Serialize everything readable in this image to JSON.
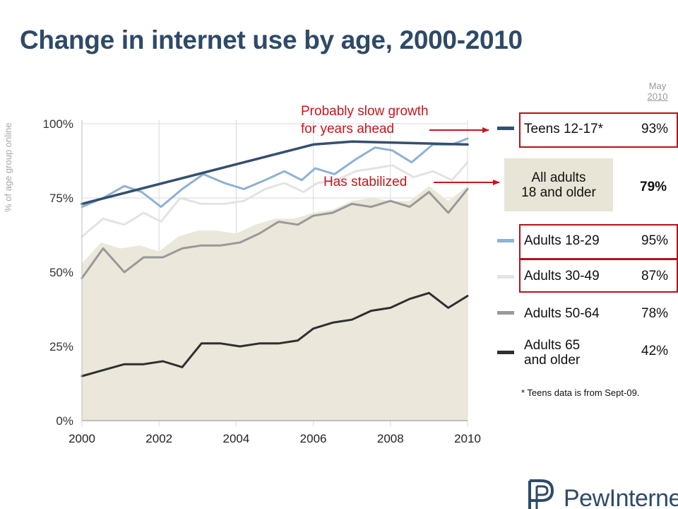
{
  "header": {
    "title": "Change in internet use by age, 2000-2010"
  },
  "chart_data": {
    "type": "line",
    "title": "Change in internet use by age, 2000-2010",
    "ylabel": "% of age group online",
    "xlim": [
      2000,
      2010
    ],
    "ylim": [
      0,
      100
    ],
    "x_ticks": [
      "2000",
      "2002",
      "2004",
      "2006",
      "2008",
      "2010"
    ],
    "y_ticks": [
      "0%",
      "25%",
      "50%",
      "75%",
      "100%"
    ],
    "grid": true,
    "area": {
      "name": "All adults 18 and older",
      "x": [
        2000,
        2000.5,
        2001,
        2001.5,
        2002,
        2002.5,
        2003,
        2003.5,
        2004,
        2004.5,
        2005,
        2005.5,
        2006,
        2006.5,
        2007,
        2007.5,
        2008,
        2008.5,
        2009,
        2009.5,
        2010
      ],
      "y": [
        53,
        60,
        58,
        59,
        57,
        62,
        64,
        64,
        63,
        66,
        68,
        68,
        70,
        71,
        74,
        75,
        74,
        74,
        79,
        74,
        79
      ]
    },
    "series": [
      {
        "name": "Teens 12-17*",
        "color": "#34506e",
        "x": [
          2000,
          2006,
          2007,
          2010
        ],
        "y": [
          73,
          93,
          94,
          93
        ]
      },
      {
        "name": "Adults 18-29",
        "color": "#8fb1d3",
        "x": [
          2000,
          2000.55,
          2001.1,
          2001.55,
          2002.05,
          2002.6,
          2003.15,
          2003.7,
          2004.2,
          2004.75,
          2005.25,
          2005.7,
          2006.05,
          2006.55,
          2007.1,
          2007.6,
          2008.05,
          2008.55,
          2009.1,
          2009.6,
          2010
        ],
        "y": [
          72,
          75,
          79,
          77,
          72,
          78,
          83,
          80,
          78,
          81,
          84,
          81,
          85,
          83,
          88,
          92,
          91,
          87,
          93,
          93,
          95
        ]
      },
      {
        "name": "Adults 30-49",
        "color": "#e3e3e3",
        "x": [
          2000,
          2000.55,
          2001.1,
          2001.6,
          2002.05,
          2002.55,
          2003.1,
          2003.7,
          2004.2,
          2004.75,
          2005.25,
          2005.75,
          2006.1,
          2006.6,
          2007.1,
          2007.6,
          2008.05,
          2008.6,
          2009.1,
          2009.6,
          2010
        ],
        "y": [
          62,
          68,
          66,
          70,
          67,
          75,
          73,
          73,
          74,
          78,
          80,
          77,
          80,
          81,
          84,
          85,
          86,
          82,
          84,
          81,
          87
        ]
      },
      {
        "name": "Adults 50-64",
        "color": "#999999",
        "x": [
          2000,
          2000.55,
          2001.1,
          2001.6,
          2002.1,
          2002.6,
          2003.1,
          2003.6,
          2004.1,
          2004.6,
          2005.1,
          2005.6,
          2006,
          2006.5,
          2007,
          2007.5,
          2008,
          2008.5,
          2009,
          2009.5,
          2010
        ],
        "y": [
          48,
          58,
          50,
          55,
          55,
          58,
          59,
          59,
          60,
          63,
          67,
          66,
          69,
          70,
          73,
          72,
          74,
          72,
          77,
          70,
          78
        ]
      },
      {
        "name": "Adults 65 and older",
        "color": "#2f2f2f",
        "x": [
          2000,
          2000.55,
          2001.1,
          2001.6,
          2002.1,
          2002.6,
          2003.1,
          2003.6,
          2004.1,
          2004.6,
          2005.1,
          2005.6,
          2006,
          2006.5,
          2007,
          2007.5,
          2008,
          2008.5,
          2009,
          2009.5,
          2010
        ],
        "y": [
          15,
          17,
          19,
          19,
          20,
          18,
          26,
          26,
          25,
          26,
          26,
          27,
          31,
          33,
          34,
          37,
          38,
          41,
          43,
          38,
          42
        ]
      }
    ]
  },
  "legend": {
    "header_month": "May",
    "header_year": "2010",
    "items": [
      {
        "label": "Teens 12-17*",
        "value": "93%",
        "color": "#34506e"
      },
      {
        "label": "Adults 18-29",
        "value": "95%",
        "color": "#8fb1d3"
      },
      {
        "label": "Adults 30-49",
        "value": "87%",
        "color": "#e3e3e3"
      },
      {
        "label": "Adults 50-64",
        "value": "78%",
        "color": "#999999"
      },
      {
        "label_line1": "Adults 65",
        "label_line2": "and older",
        "value": "42%",
        "color": "#2f2f2f"
      }
    ],
    "all_adults": {
      "line1": "All adults",
      "line2": "18 and older",
      "value": "79%",
      "color": "#e8e4d6"
    }
  },
  "annotations": {
    "slow_growth_line1": "Probably slow growth",
    "slow_growth_line2": "for years ahead",
    "stabilized": "Has stabilized",
    "color": "#c8161d"
  },
  "footnote": "* Teens data is from Sept-09.",
  "logo": {
    "text": "PewInternet",
    "icon": "pew-logo-icon"
  }
}
